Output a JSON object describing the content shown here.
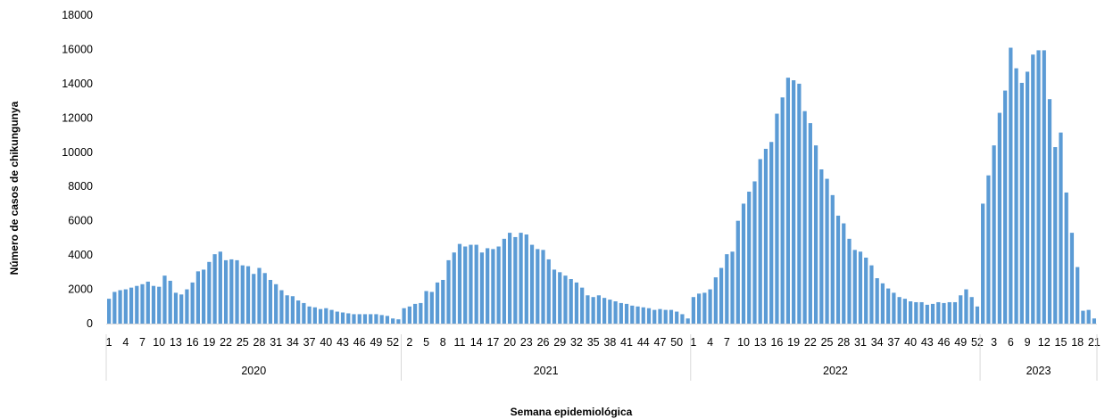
{
  "chart_data": {
    "type": "bar",
    "title": "",
    "xlabel": "Semana epidemiológica",
    "ylabel": "Número de casos de chikungunya",
    "ylim": [
      0,
      18000
    ],
    "yticks": [
      0,
      2000,
      4000,
      6000,
      8000,
      10000,
      12000,
      14000,
      16000,
      18000
    ],
    "grid": false,
    "legend": "none",
    "bar_color": "#5b9bd5",
    "groups": [
      {
        "label": "2020",
        "start": 0,
        "count": 53
      },
      {
        "label": "2021",
        "start": 53,
        "count": 52
      },
      {
        "label": "2022",
        "start": 105,
        "count": 52
      },
      {
        "label": "2023",
        "start": 157,
        "count": 21
      }
    ],
    "tick_labels": [
      {
        "index": 0,
        "label": "1"
      },
      {
        "index": 3,
        "label": "4"
      },
      {
        "index": 6,
        "label": "7"
      },
      {
        "index": 9,
        "label": "10"
      },
      {
        "index": 12,
        "label": "13"
      },
      {
        "index": 15,
        "label": "16"
      },
      {
        "index": 18,
        "label": "19"
      },
      {
        "index": 21,
        "label": "22"
      },
      {
        "index": 24,
        "label": "25"
      },
      {
        "index": 27,
        "label": "28"
      },
      {
        "index": 30,
        "label": "31"
      },
      {
        "index": 33,
        "label": "34"
      },
      {
        "index": 36,
        "label": "37"
      },
      {
        "index": 39,
        "label": "40"
      },
      {
        "index": 42,
        "label": "43"
      },
      {
        "index": 45,
        "label": "46"
      },
      {
        "index": 48,
        "label": "49"
      },
      {
        "index": 51,
        "label": "52"
      },
      {
        "index": 54,
        "label": "2"
      },
      {
        "index": 57,
        "label": "5"
      },
      {
        "index": 60,
        "label": "8"
      },
      {
        "index": 63,
        "label": "11"
      },
      {
        "index": 66,
        "label": "14"
      },
      {
        "index": 69,
        "label": "17"
      },
      {
        "index": 72,
        "label": "20"
      },
      {
        "index": 75,
        "label": "23"
      },
      {
        "index": 78,
        "label": "26"
      },
      {
        "index": 81,
        "label": "29"
      },
      {
        "index": 84,
        "label": "32"
      },
      {
        "index": 87,
        "label": "35"
      },
      {
        "index": 90,
        "label": "38"
      },
      {
        "index": 93,
        "label": "41"
      },
      {
        "index": 96,
        "label": "44"
      },
      {
        "index": 99,
        "label": "47"
      },
      {
        "index": 102,
        "label": "50"
      },
      {
        "index": 105,
        "label": "1"
      },
      {
        "index": 108,
        "label": "4"
      },
      {
        "index": 111,
        "label": "7"
      },
      {
        "index": 114,
        "label": "10"
      },
      {
        "index": 117,
        "label": "13"
      },
      {
        "index": 120,
        "label": "16"
      },
      {
        "index": 123,
        "label": "19"
      },
      {
        "index": 126,
        "label": "22"
      },
      {
        "index": 129,
        "label": "25"
      },
      {
        "index": 132,
        "label": "28"
      },
      {
        "index": 135,
        "label": "31"
      },
      {
        "index": 138,
        "label": "34"
      },
      {
        "index": 141,
        "label": "37"
      },
      {
        "index": 144,
        "label": "40"
      },
      {
        "index": 147,
        "label": "43"
      },
      {
        "index": 150,
        "label": "46"
      },
      {
        "index": 153,
        "label": "49"
      },
      {
        "index": 156,
        "label": "52"
      },
      {
        "index": 159,
        "label": "3"
      },
      {
        "index": 162,
        "label": "6"
      },
      {
        "index": 165,
        "label": "9"
      },
      {
        "index": 168,
        "label": "12"
      },
      {
        "index": 171,
        "label": "15"
      },
      {
        "index": 174,
        "label": "18"
      },
      {
        "index": 177,
        "label": "21"
      }
    ],
    "values": [
      1450,
      1850,
      1950,
      2000,
      2100,
      2200,
      2300,
      2450,
      2200,
      2150,
      2800,
      2500,
      1800,
      1700,
      2000,
      2400,
      3050,
      3150,
      3600,
      4050,
      4200,
      3700,
      3750,
      3700,
      3400,
      3350,
      2900,
      3250,
      2950,
      2550,
      2300,
      1950,
      1650,
      1600,
      1350,
      1200,
      1000,
      950,
      850,
      900,
      800,
      700,
      650,
      600,
      550,
      550,
      550,
      550,
      550,
      500,
      450,
      300,
      250,
      900,
      1000,
      1150,
      1200,
      1900,
      1850,
      2400,
      2550,
      3700,
      4150,
      4650,
      4500,
      4600,
      4600,
      4150,
      4400,
      4350,
      4500,
      4950,
      5300,
      5050,
      5300,
      5200,
      4600,
      4350,
      4300,
      3750,
      3150,
      3000,
      2800,
      2600,
      2400,
      2100,
      1650,
      1550,
      1650,
      1500,
      1400,
      1300,
      1200,
      1150,
      1050,
      1000,
      950,
      900,
      800,
      850,
      800,
      800,
      700,
      550,
      300,
      1550,
      1750,
      1800,
      2000,
      2700,
      3250,
      4050,
      4200,
      6000,
      7000,
      7700,
      8300,
      9600,
      10200,
      10600,
      12250,
      13200,
      14350,
      14200,
      14000,
      12400,
      11700,
      10400,
      9000,
      8450,
      7500,
      6300,
      5850,
      4950,
      4300,
      4200,
      3850,
      3400,
      2650,
      2350,
      2050,
      1800,
      1550,
      1450,
      1300,
      1250,
      1250,
      1100,
      1150,
      1250,
      1200,
      1250,
      1250,
      1650,
      2000,
      1550,
      1000,
      7000,
      8650,
      10400,
      12300,
      13600,
      16100,
      14900,
      14050,
      14700,
      15700,
      15950,
      15950,
      13100,
      10300,
      11150,
      7650,
      5300,
      3300,
      750,
      800,
      300
    ]
  }
}
